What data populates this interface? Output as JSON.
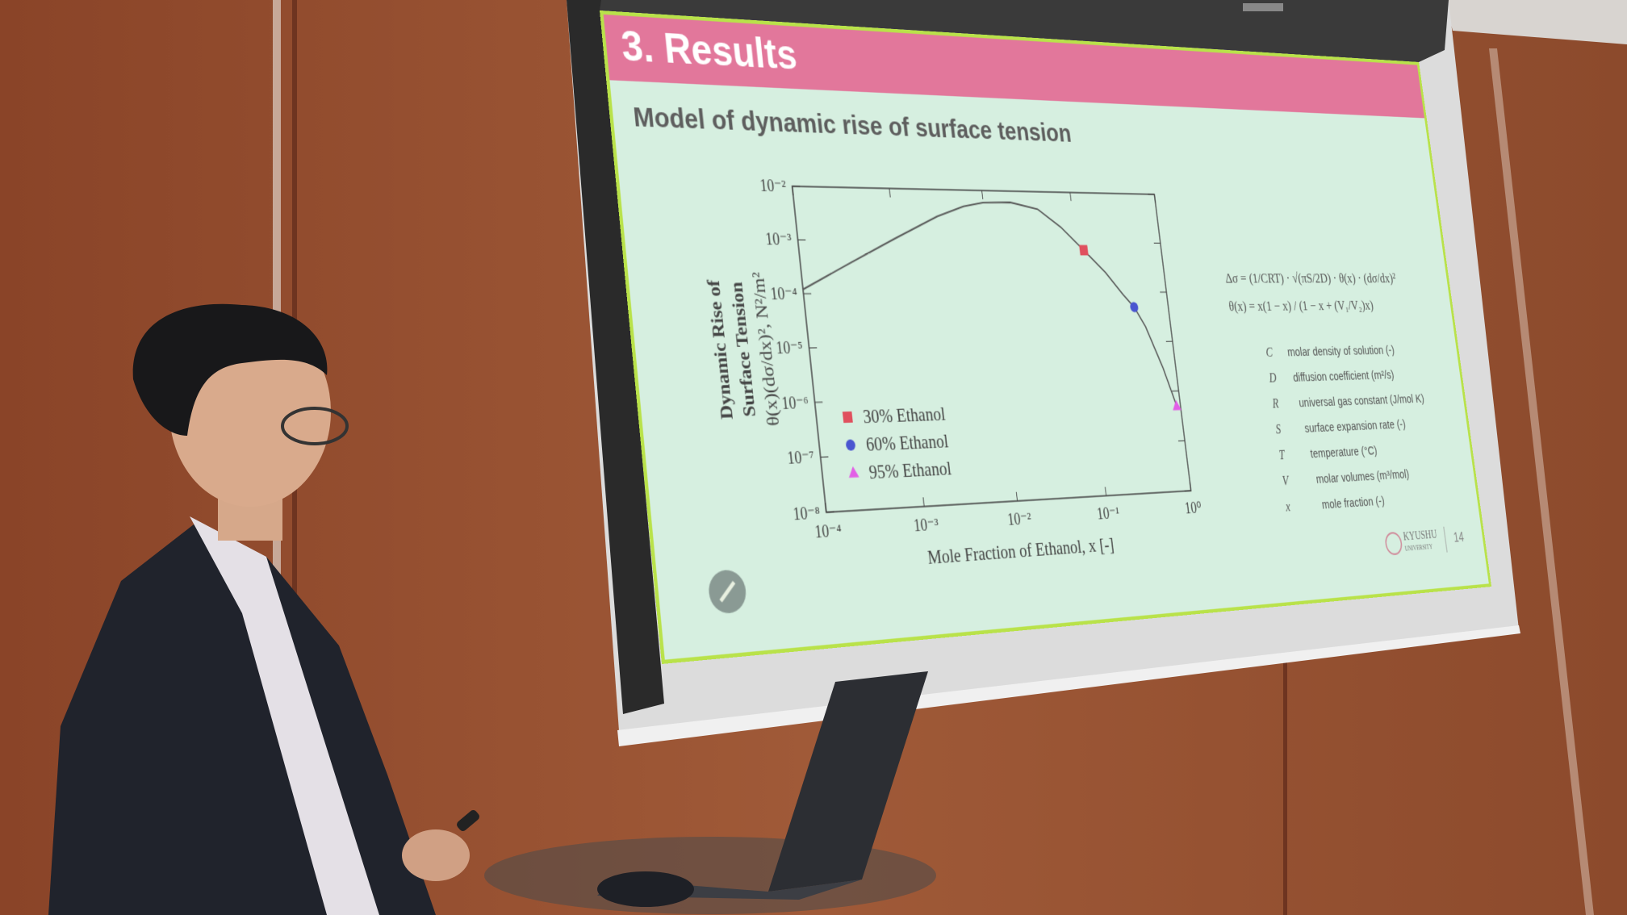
{
  "slide": {
    "title": "3. Results",
    "subtitle": "Model of dynamic rise of surface tension",
    "chart": {
      "type": "line",
      "log_x": true,
      "log_y": true,
      "x_label": "Mole Fraction of Ethanol, x [-]",
      "y_label": [
        "Dynamic Rise of",
        "Surface Tension",
        "θ(x)(dσ/dx)², N²/m²"
      ],
      "xlim": [
        0.0001,
        1
      ],
      "ylim": [
        1e-08,
        0.01
      ],
      "xticks": [
        {
          "value": 0.0001,
          "label": "10⁻⁴"
        },
        {
          "value": 0.001,
          "label": "10⁻³"
        },
        {
          "value": 0.01,
          "label": "10⁻²"
        },
        {
          "value": 0.1,
          "label": "10⁻¹"
        },
        {
          "value": 1,
          "label": "10⁰"
        }
      ],
      "yticks": [
        {
          "value": 1e-08,
          "label": "10⁻⁸"
        },
        {
          "value": 1e-07,
          "label": "10⁻⁷"
        },
        {
          "value": 1e-06,
          "label": "10⁻⁶"
        },
        {
          "value": 1e-05,
          "label": "10⁻⁵"
        },
        {
          "value": 0.0001,
          "label": "10⁻⁴"
        },
        {
          "value": 0.001,
          "label": "10⁻³"
        },
        {
          "value": 0.01,
          "label": "10⁻²"
        }
      ],
      "curve": {
        "color": "#555555",
        "x": [
          0.0001,
          0.0003,
          0.001,
          0.003,
          0.006,
          0.01,
          0.02,
          0.04,
          0.07,
          0.12,
          0.2,
          0.3,
          0.39,
          0.5,
          0.7,
          0.9
        ],
        "y": [
          0.00012,
          0.00035,
          0.0011,
          0.003,
          0.0048,
          0.0058,
          0.006,
          0.0045,
          0.002,
          0.0007,
          0.00025,
          9e-05,
          5e-05,
          2e-05,
          3e-06,
          5e-07
        ]
      },
      "points": [
        {
          "name": "30% Ethanol",
          "color": "#e0505e",
          "marker": "square",
          "x": 0.12,
          "y": 0.0007
        },
        {
          "name": "60% Ethanol",
          "color": "#4a55d0",
          "marker": "circle",
          "x": 0.39,
          "y": 5e-05
        },
        {
          "name": "95% Ethanol",
          "color": "#e25fe6",
          "marker": "triangle",
          "x": 0.9,
          "y": 5e-07
        }
      ],
      "legend": "lower-left"
    },
    "equations": [
      "Δσ = (1/CRT) · √(πS/2D) · θ(x) · (dσ/dx)²",
      "θ(x) = x(1 − x) / (1 − x + (V₁/V₂)x)"
    ],
    "variables": [
      {
        "symbol": "C",
        "description": "molar density of solution (-)"
      },
      {
        "symbol": "D",
        "description": "diffusion coefficient (m²/s)"
      },
      {
        "symbol": "R",
        "description": "universal gas constant (J/mol K)"
      },
      {
        "symbol": "S",
        "description": "surface expansion rate (-)"
      },
      {
        "symbol": "T",
        "description": "temperature (°C)"
      },
      {
        "symbol": "V",
        "description": "molar volumes (m³/mol)"
      },
      {
        "symbol": "x",
        "description": "mole fraction (-)"
      }
    ],
    "logo": [
      "KYUSHU",
      "UNIVERSITY"
    ],
    "page": "14"
  }
}
